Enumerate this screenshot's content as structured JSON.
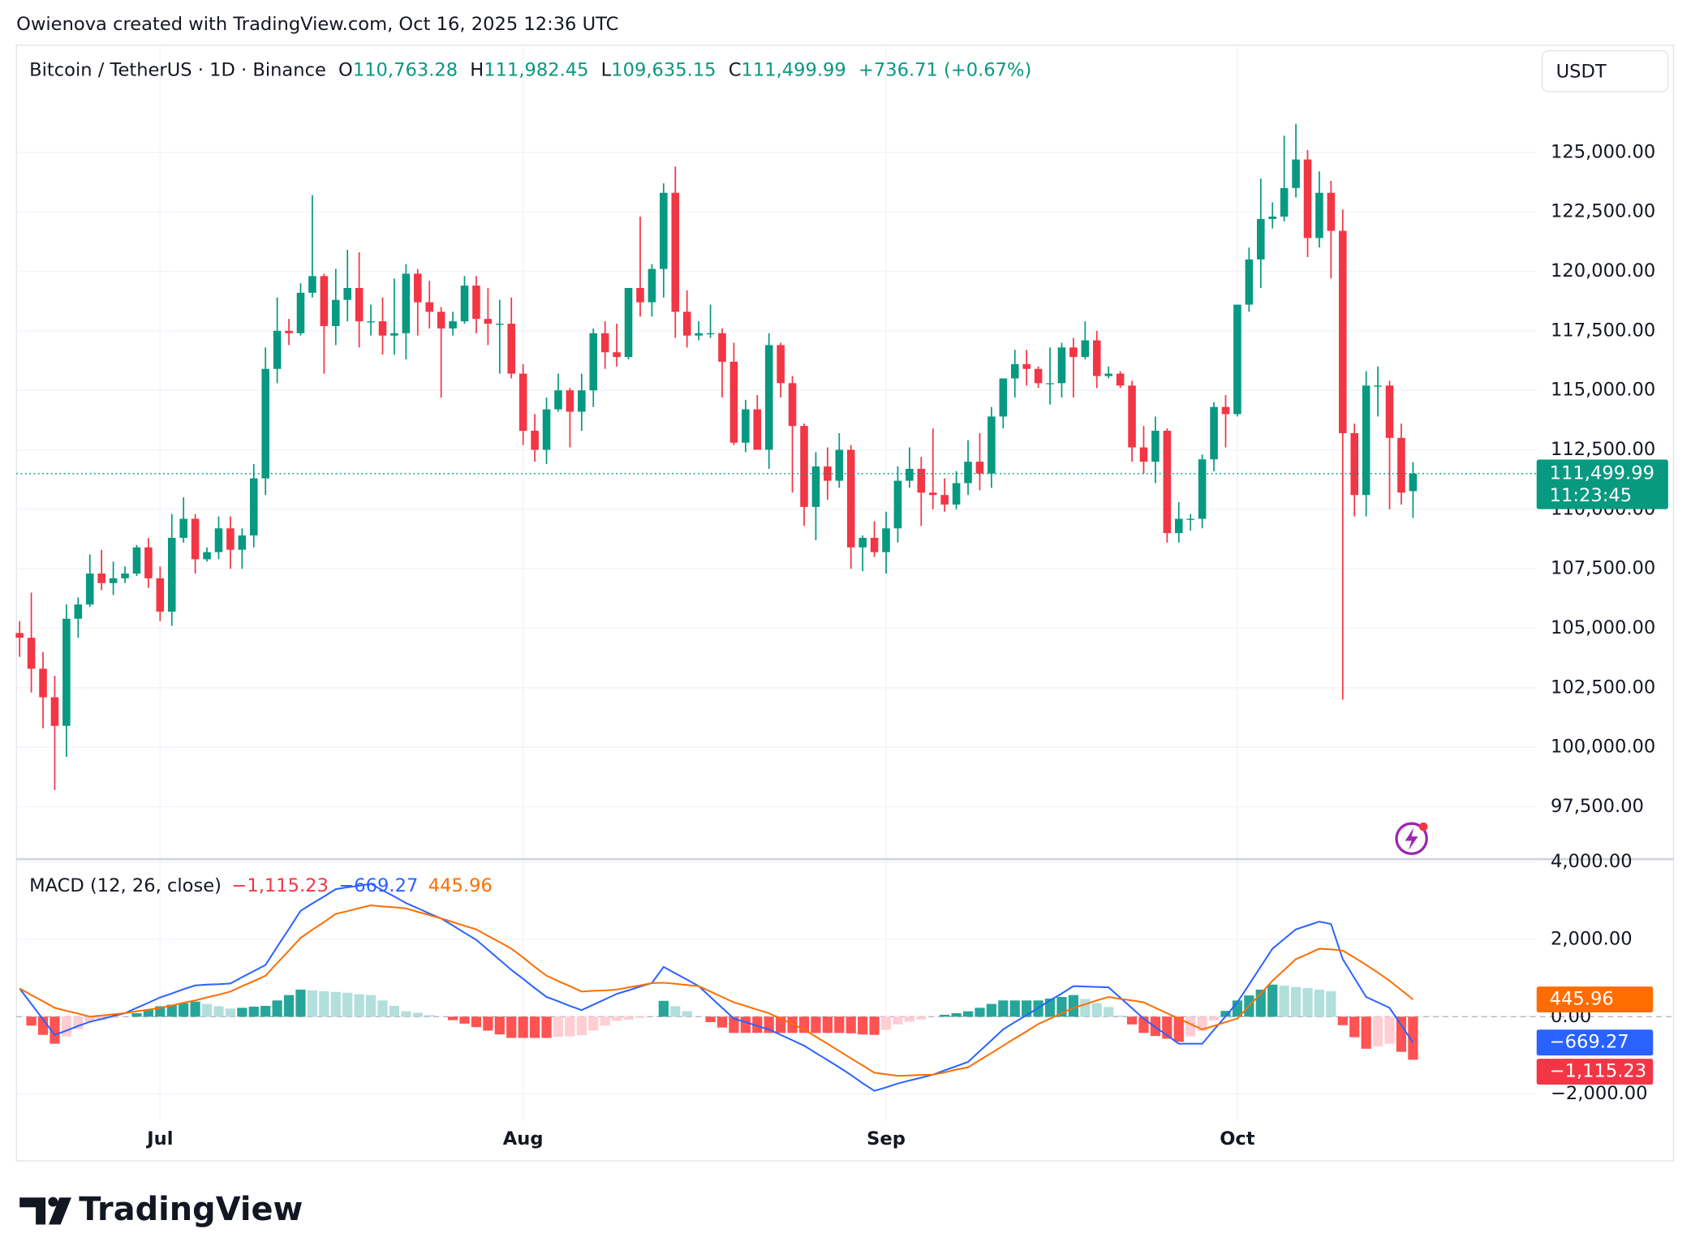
{
  "header": {
    "attribution": "Owienova created with TradingView.com, Oct 16, 2025 12:36 UTC",
    "symbol": "Bitcoin / TetherUS · 1D · Binance",
    "open_label": "O",
    "open": "110,763.28",
    "high_label": "H",
    "high": "111,982.45",
    "low_label": "L",
    "low": "109,635.15",
    "close_label": "C",
    "close": "111,499.99",
    "change": "+736.71 (+0.67%)",
    "currency": "USDT",
    "logo": "TradingView"
  },
  "chart_data": [
    {
      "type": "candlestick",
      "up_color": "#089981",
      "down_color": "#f23645",
      "grid": true,
      "categories": [
        null,
        null,
        null,
        null,
        null,
        null,
        null,
        null,
        null,
        null,
        null,
        null,
        "Jul",
        null,
        null,
        null,
        null,
        null,
        null,
        null,
        null,
        null,
        null,
        null,
        null,
        null,
        null,
        null,
        null,
        null,
        null,
        null,
        null,
        null,
        null,
        null,
        null,
        null,
        null,
        null,
        null,
        null,
        null,
        "Aug",
        null,
        null,
        null,
        null,
        null,
        null,
        null,
        null,
        null,
        null,
        null,
        null,
        null,
        null,
        null,
        null,
        null,
        null,
        null,
        null,
        null,
        null,
        null,
        null,
        null,
        null,
        null,
        null,
        null,
        null,
        "Sep",
        null,
        null,
        null,
        null,
        null,
        null,
        null,
        null,
        null,
        null,
        null,
        null,
        null,
        null,
        null,
        null,
        null,
        null,
        null,
        null,
        null,
        null,
        null,
        null,
        null,
        null,
        null,
        null,
        null,
        "Oct",
        null,
        null,
        null,
        null,
        null,
        null,
        null,
        null,
        null,
        null,
        null,
        null,
        null,
        null,
        null
      ],
      "open": [
        104800,
        104600,
        103300,
        102100,
        100900,
        105400,
        106000,
        107300,
        106900,
        107100,
        107300,
        108400,
        107100,
        105700,
        108800,
        109600,
        107900,
        108200,
        109200,
        108300,
        108900,
        111300,
        115900,
        117500,
        117400,
        119100,
        119800,
        117700,
        118800,
        119300,
        117900,
        117900,
        117300,
        117400,
        119900,
        118700,
        118300,
        117600,
        117900,
        119400,
        118000,
        117800,
        117800,
        115700,
        113300,
        112500,
        114200,
        115000,
        114100,
        115000,
        117400,
        116600,
        116400,
        119300,
        118700,
        120100,
        123300,
        118300,
        117300,
        117400,
        117400,
        116200,
        112800,
        114200,
        112500,
        116900,
        115300,
        113500,
        110100,
        111800,
        111200,
        112500,
        108400,
        108800,
        108200,
        109200,
        111200,
        111700,
        110700,
        110600,
        110200,
        111100,
        112000,
        111500,
        113900,
        115500,
        116100,
        115900,
        115300,
        115300,
        116800,
        116400,
        117100,
        115600,
        115700,
        115200,
        112600,
        112000,
        113300,
        109000,
        109600,
        109600,
        112100,
        114300,
        114000,
        118600,
        120500,
        122200,
        122300,
        123500,
        124700,
        121400,
        123300,
        121700,
        113200,
        110600,
        115200,
        115200,
        113000,
        110763.28
      ],
      "high": [
        105300,
        106500,
        104000,
        103000,
        106000,
        106300,
        108100,
        108300,
        107800,
        107600,
        108500,
        108800,
        107600,
        109800,
        110500,
        109800,
        108400,
        109700,
        109700,
        109200,
        111900,
        116800,
        118900,
        118000,
        119500,
        123200,
        119900,
        120100,
        120900,
        120800,
        118600,
        118900,
        119700,
        120300,
        120100,
        119600,
        118500,
        118300,
        119800,
        119800,
        119300,
        118800,
        118900,
        116100,
        114000,
        114700,
        115700,
        115100,
        115700,
        117600,
        117900,
        117800,
        119300,
        122300,
        120300,
        123700,
        124400,
        119200,
        117900,
        118600,
        117600,
        117000,
        114600,
        114800,
        117400,
        117000,
        115600,
        113600,
        112400,
        112600,
        113200,
        112700,
        108900,
        109500,
        109900,
        111800,
        112600,
        112200,
        113400,
        111300,
        111600,
        112900,
        113200,
        114300,
        115500,
        116700,
        116700,
        116000,
        116800,
        117000,
        117200,
        117900,
        117500,
        116000,
        115800,
        115400,
        113500,
        113900,
        113400,
        110300,
        109800,
        112300,
        114500,
        114800,
        118600,
        121000,
        123900,
        122900,
        125700,
        126200,
        125100,
        124200,
        123800,
        122600,
        113600,
        115800,
        116000,
        115400,
        113600,
        111982.45
      ],
      "low": [
        103800,
        102300,
        100800,
        98200,
        99600,
        104600,
        105900,
        106600,
        106400,
        106900,
        107200,
        106700,
        105300,
        105100,
        108600,
        107300,
        107800,
        107900,
        107500,
        107500,
        108400,
        110600,
        115300,
        116900,
        117300,
        118900,
        115700,
        116900,
        117900,
        116800,
        117300,
        116500,
        116500,
        116300,
        117300,
        117600,
        114700,
        117300,
        117800,
        117400,
        116900,
        115700,
        115500,
        112700,
        112000,
        111900,
        114100,
        112600,
        113300,
        114300,
        115900,
        116000,
        116300,
        118100,
        118100,
        118900,
        117200,
        116800,
        117100,
        117200,
        114700,
        112700,
        112400,
        112500,
        111700,
        114700,
        110700,
        109300,
        108700,
        110400,
        110900,
        107500,
        107400,
        108000,
        107300,
        108600,
        110900,
        109300,
        110000,
        109900,
        110000,
        110600,
        110800,
        110900,
        113400,
        114700,
        115200,
        115100,
        114400,
        114700,
        114700,
        116300,
        115100,
        115500,
        115100,
        112000,
        111500,
        111100,
        108600,
        108600,
        109100,
        109200,
        111600,
        112600,
        113900,
        118300,
        119300,
        121800,
        122100,
        123100,
        120600,
        121000,
        119700,
        102000,
        109700,
        109700,
        113900,
        110000,
        110200,
        109635.15
      ],
      "close": [
        104600,
        103300,
        102100,
        100900,
        105400,
        106000,
        107300,
        106900,
        107100,
        107300,
        108400,
        107100,
        105700,
        108800,
        109600,
        107900,
        108200,
        109200,
        108300,
        108900,
        111300,
        115900,
        117500,
        117400,
        119100,
        119800,
        117700,
        118800,
        119300,
        117900,
        117900,
        117300,
        117400,
        119900,
        118700,
        118300,
        117600,
        117900,
        119400,
        118000,
        117800,
        117800,
        115700,
        113300,
        112500,
        114200,
        115000,
        114100,
        115000,
        117400,
        116600,
        116400,
        119300,
        118700,
        120100,
        123300,
        118300,
        117300,
        117400,
        117400,
        116200,
        112800,
        114200,
        112500,
        116900,
        115300,
        113500,
        110100,
        111800,
        111200,
        112500,
        108400,
        108800,
        108200,
        109200,
        111200,
        111700,
        110700,
        110600,
        110200,
        111100,
        112000,
        111500,
        113900,
        115500,
        116100,
        115900,
        115300,
        115300,
        116800,
        116400,
        117100,
        115600,
        115700,
        115200,
        112600,
        112000,
        113300,
        109000,
        109600,
        109600,
        112100,
        114300,
        114000,
        118600,
        120500,
        122200,
        122300,
        123500,
        124700,
        121400,
        123300,
        121700,
        113200,
        110600,
        115200,
        115200,
        113000,
        110700,
        111499.99
      ],
      "last_price_label": "111,499.99",
      "countdown": "11:23:45",
      "ylim": [
        95300,
        129500
      ],
      "yticks": [
        {
          "value": 97500,
          "label": "97,500.00"
        },
        {
          "value": 100000,
          "label": "100,000.00"
        },
        {
          "value": 102500,
          "label": "102,500.00"
        },
        {
          "value": 105000,
          "label": "105,000.00"
        },
        {
          "value": 107500,
          "label": "107,500.00"
        },
        {
          "value": 110000,
          "label": "110,000.00"
        },
        {
          "value": 112500,
          "label": "112,500.00"
        },
        {
          "value": 115000,
          "label": "115,000.00"
        },
        {
          "value": 117500,
          "label": "117,500.00"
        },
        {
          "value": 120000,
          "label": "120,000.00"
        },
        {
          "value": 122500,
          "label": "122,500.00"
        },
        {
          "value": 125000,
          "label": "125,000.00"
        }
      ]
    },
    {
      "type": "macd",
      "title": "MACD (12, 26, close)",
      "ylim": [
        -2700,
        4050
      ],
      "yticks": [
        {
          "value": -2000,
          "label": "−2,000.00"
        },
        {
          "value": 0,
          "label": "0.00"
        },
        {
          "value": 2000,
          "label": "2,000.00"
        },
        {
          "value": 4000,
          "label": "4,000.00"
        }
      ],
      "series": [
        {
          "kind": "histogram",
          "colors": [
            "#26a69a",
            "#b2dfdb",
            "#ffcdd2",
            "#ff5252"
          ],
          "color": "#f23645",
          "value_label": "−1,115.23",
          "values": [
            0,
            -230,
            -470,
            -700,
            -510,
            -320,
            -130,
            -90,
            -40,
            0,
            90,
            180,
            270,
            310,
            350,
            390,
            330,
            270,
            210,
            230,
            260,
            280,
            420,
            560,
            700,
            680,
            660,
            640,
            620,
            580,
            560,
            420,
            280,
            140,
            100,
            40,
            0,
            -90,
            -180,
            -270,
            -360,
            -460,
            -550,
            -550,
            -550,
            -550,
            -520,
            -510,
            -480,
            -360,
            -230,
            -110,
            -80,
            -30,
            0,
            410,
            270,
            140,
            0,
            -140,
            -280,
            -420,
            -420,
            -420,
            -420,
            -420,
            -420,
            -420,
            -420,
            -420,
            -420,
            -430,
            -460,
            -470,
            -340,
            -200,
            -130,
            -70,
            0,
            50,
            90,
            140,
            230,
            330,
            420,
            420,
            420,
            420,
            470,
            510,
            560,
            460,
            350,
            250,
            30,
            -200,
            -420,
            -500,
            -570,
            -650,
            -510,
            -370,
            -100,
            150,
            420,
            550,
            700,
            830,
            800,
            770,
            740,
            700,
            660,
            -220,
            -530,
            -830,
            -770,
            -700,
            -910,
            -1115.23
          ]
        },
        {
          "kind": "line",
          "color": "#2962ff",
          "value_label": "−669.27",
          "values": [
            730,
            330,
            -70,
            -470,
            -360,
            -240,
            -130,
            -60,
            20,
            90,
            230,
            360,
            500,
            600,
            710,
            810,
            830,
            840,
            860,
            1020,
            1180,
            1340,
            1810,
            2270,
            2740,
            2930,
            3110,
            3300,
            3350,
            3390,
            3440,
            3270,
            3110,
            2940,
            2810,
            2670,
            2540,
            2360,
            2170,
            1990,
            1730,
            1470,
            1210,
            980,
            740,
            510,
            400,
            280,
            170,
            310,
            450,
            590,
            680,
            780,
            870,
            1290,
            1120,
            960,
            790,
            510,
            230,
            -50,
            -140,
            -240,
            -330,
            -470,
            -610,
            -750,
            -940,
            -1120,
            -1310,
            -1510,
            -1720,
            -1920,
            -1830,
            -1730,
            -1650,
            -1580,
            -1500,
            -1390,
            -1280,
            -1170,
            -890,
            -610,
            -330,
            -140,
            40,
            230,
            420,
            600,
            790,
            780,
            770,
            760,
            490,
            220,
            -50,
            -270,
            -480,
            -700,
            -700,
            -700,
            -340,
            10,
            370,
            830,
            1300,
            1760,
            2010,
            2260,
            2360,
            2460,
            2400,
            1490,
            1000,
            510,
            370,
            230,
            -220,
            -669.27
          ]
        },
        {
          "kind": "line",
          "color": "#ff6d00",
          "value_label": "445.96",
          "values": [
            730,
            560,
            400,
            230,
            150,
            80,
            0,
            30,
            60,
            90,
            140,
            180,
            230,
            290,
            360,
            420,
            500,
            570,
            650,
            790,
            920,
            1060,
            1390,
            1710,
            2040,
            2250,
            2450,
            2660,
            2730,
            2810,
            2880,
            2850,
            2830,
            2800,
            2710,
            2630,
            2540,
            2450,
            2350,
            2260,
            2090,
            1930,
            1760,
            1530,
            1290,
            1060,
            920,
            790,
            650,
            670,
            680,
            700,
            760,
            810,
            870,
            880,
            850,
            820,
            790,
            650,
            510,
            370,
            280,
            180,
            90,
            -50,
            -190,
            -330,
            -520,
            -700,
            -890,
            -1080,
            -1260,
            -1450,
            -1490,
            -1530,
            -1520,
            -1510,
            -1500,
            -1440,
            -1370,
            -1310,
            -1120,
            -940,
            -750,
            -560,
            -380,
            -190,
            -50,
            90,
            230,
            320,
            420,
            510,
            460,
            420,
            370,
            230,
            90,
            -50,
            -190,
            -330,
            -240,
            -140,
            -50,
            280,
            600,
            930,
            1210,
            1490,
            1620,
            1760,
            1740,
            1710,
            1530,
            1340,
            1140,
            930,
            690,
            445.96
          ]
        }
      ]
    }
  ]
}
